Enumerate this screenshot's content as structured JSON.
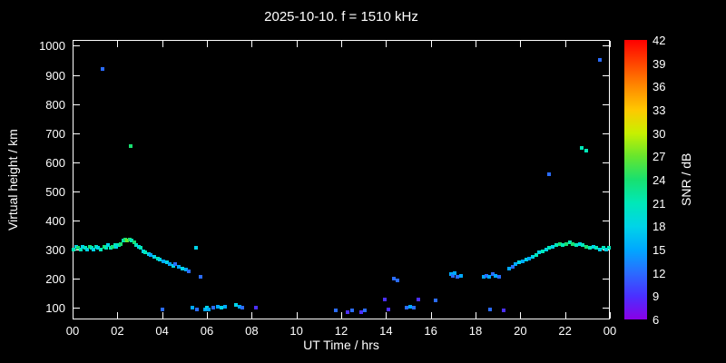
{
  "chart_data": {
    "type": "scatter",
    "title": "2025-10-10. f = 1510 kHz",
    "xlabel": "UT Time / hrs",
    "ylabel": "Virtual height / km",
    "colorbar_label": "SNR / dB",
    "background": "#000000",
    "axis_color": "#ffffff",
    "xlim": [
      0,
      24
    ],
    "ylim": [
      60,
      1020
    ],
    "x_ticks": [
      {
        "v": 0,
        "l": "00"
      },
      {
        "v": 2,
        "l": "02"
      },
      {
        "v": 4,
        "l": "04"
      },
      {
        "v": 6,
        "l": "06"
      },
      {
        "v": 8,
        "l": "08"
      },
      {
        "v": 10,
        "l": "10"
      },
      {
        "v": 12,
        "l": "12"
      },
      {
        "v": 14,
        "l": "14"
      },
      {
        "v": 16,
        "l": "16"
      },
      {
        "v": 18,
        "l": "18"
      },
      {
        "v": 20,
        "l": "20"
      },
      {
        "v": 22,
        "l": "22"
      },
      {
        "v": 24,
        "l": "00"
      }
    ],
    "y_ticks": [
      100,
      200,
      300,
      400,
      500,
      600,
      700,
      800,
      900,
      1000
    ],
    "colorbar_ticks": [
      6,
      9,
      12,
      15,
      18,
      21,
      24,
      27,
      30,
      33,
      36,
      39,
      42
    ],
    "colorbar_range": [
      6,
      42
    ],
    "palette": [
      {
        "v": 6,
        "c": "#8a00e6"
      },
      {
        "v": 9,
        "c": "#4b2fff"
      },
      {
        "v": 12,
        "c": "#2a6cff"
      },
      {
        "v": 15,
        "c": "#00a8ff"
      },
      {
        "v": 18,
        "c": "#00d4e8"
      },
      {
        "v": 21,
        "c": "#00e8b8"
      },
      {
        "v": 24,
        "c": "#18e070"
      },
      {
        "v": 27,
        "c": "#66e62e"
      },
      {
        "v": 30,
        "c": "#c8f000"
      },
      {
        "v": 33,
        "c": "#ffc800"
      },
      {
        "v": 36,
        "c": "#ff8a00"
      },
      {
        "v": 39,
        "c": "#ff4400"
      },
      {
        "v": 42,
        "c": "#ff0000"
      }
    ],
    "points_format": [
      "ut_hour",
      "virtual_height_km",
      "snr_db"
    ],
    "points": [
      [
        0.05,
        300,
        21
      ],
      [
        0.15,
        310,
        18
      ],
      [
        0.25,
        305,
        24
      ],
      [
        0.35,
        300,
        21
      ],
      [
        0.45,
        310,
        18
      ],
      [
        0.55,
        305,
        21
      ],
      [
        0.65,
        300,
        18
      ],
      [
        0.75,
        310,
        24
      ],
      [
        0.85,
        305,
        21
      ],
      [
        0.95,
        300,
        18
      ],
      [
        1.05,
        310,
        21
      ],
      [
        1.15,
        305,
        18
      ],
      [
        1.25,
        300,
        21
      ],
      [
        1.35,
        920,
        12
      ],
      [
        1.4,
        310,
        24
      ],
      [
        1.5,
        305,
        21
      ],
      [
        1.6,
        315,
        18
      ],
      [
        1.7,
        305,
        21
      ],
      [
        1.8,
        310,
        24
      ],
      [
        1.9,
        315,
        21
      ],
      [
        1.95,
        310,
        18
      ],
      [
        2.05,
        315,
        21
      ],
      [
        2.15,
        320,
        24
      ],
      [
        2.25,
        330,
        21
      ],
      [
        2.35,
        335,
        24
      ],
      [
        2.45,
        330,
        27
      ],
      [
        2.55,
        335,
        24
      ],
      [
        2.6,
        655,
        24
      ],
      [
        2.65,
        330,
        21
      ],
      [
        2.75,
        325,
        24
      ],
      [
        2.85,
        315,
        21
      ],
      [
        2.95,
        310,
        18
      ],
      [
        3.05,
        305,
        21
      ],
      [
        3.15,
        295,
        18
      ],
      [
        3.25,
        290,
        21
      ],
      [
        3.4,
        285,
        18
      ],
      [
        3.5,
        280,
        15
      ],
      [
        3.65,
        275,
        18
      ],
      [
        3.8,
        270,
        21
      ],
      [
        3.9,
        265,
        18
      ],
      [
        4.0,
        95,
        12
      ],
      [
        4.05,
        260,
        15
      ],
      [
        4.2,
        255,
        18
      ],
      [
        4.35,
        250,
        15
      ],
      [
        4.5,
        245,
        18
      ],
      [
        4.6,
        250,
        12
      ],
      [
        4.75,
        240,
        15
      ],
      [
        4.9,
        235,
        18
      ],
      [
        5.05,
        230,
        15
      ],
      [
        5.2,
        225,
        12
      ],
      [
        5.35,
        100,
        15
      ],
      [
        5.5,
        305,
        18
      ],
      [
        5.55,
        95,
        12
      ],
      [
        5.7,
        205,
        12
      ],
      [
        5.9,
        95,
        15
      ],
      [
        6.0,
        100,
        18
      ],
      [
        6.1,
        95,
        15
      ],
      [
        6.3,
        100,
        12
      ],
      [
        6.5,
        105,
        15
      ],
      [
        6.65,
        100,
        18
      ],
      [
        6.8,
        105,
        15
      ],
      [
        7.3,
        110,
        18
      ],
      [
        7.45,
        105,
        15
      ],
      [
        7.6,
        100,
        12
      ],
      [
        8.2,
        100,
        9
      ],
      [
        11.75,
        90,
        12
      ],
      [
        12.3,
        85,
        9
      ],
      [
        12.5,
        90,
        12
      ],
      [
        12.9,
        85,
        9
      ],
      [
        13.05,
        90,
        12
      ],
      [
        13.95,
        130,
        9
      ],
      [
        14.1,
        95,
        9
      ],
      [
        14.35,
        200,
        12
      ],
      [
        14.5,
        195,
        12
      ],
      [
        14.9,
        100,
        12
      ],
      [
        15.1,
        105,
        15
      ],
      [
        15.25,
        100,
        12
      ],
      [
        15.45,
        130,
        9
      ],
      [
        16.2,
        125,
        12
      ],
      [
        16.9,
        215,
        15
      ],
      [
        17.0,
        210,
        12
      ],
      [
        17.05,
        220,
        15
      ],
      [
        17.2,
        205,
        12
      ],
      [
        17.35,
        210,
        15
      ],
      [
        18.35,
        205,
        15
      ],
      [
        18.5,
        210,
        12
      ],
      [
        18.6,
        205,
        15
      ],
      [
        18.65,
        95,
        12
      ],
      [
        18.75,
        215,
        12
      ],
      [
        18.9,
        210,
        15
      ],
      [
        19.05,
        205,
        12
      ],
      [
        19.25,
        90,
        9
      ],
      [
        19.5,
        235,
        15
      ],
      [
        19.65,
        240,
        12
      ],
      [
        19.8,
        250,
        15
      ],
      [
        19.95,
        255,
        18
      ],
      [
        20.1,
        260,
        15
      ],
      [
        20.25,
        265,
        18
      ],
      [
        20.4,
        270,
        15
      ],
      [
        20.55,
        275,
        18
      ],
      [
        20.7,
        280,
        21
      ],
      [
        20.85,
        290,
        18
      ],
      [
        21.0,
        295,
        21
      ],
      [
        21.15,
        300,
        18
      ],
      [
        21.3,
        560,
        12
      ],
      [
        21.3,
        305,
        21
      ],
      [
        21.45,
        310,
        18
      ],
      [
        21.6,
        315,
        21
      ],
      [
        21.75,
        320,
        24
      ],
      [
        21.9,
        315,
        21
      ],
      [
        22.05,
        320,
        24
      ],
      [
        22.2,
        325,
        21
      ],
      [
        22.35,
        320,
        24
      ],
      [
        22.5,
        315,
        21
      ],
      [
        22.65,
        320,
        18
      ],
      [
        22.75,
        650,
        21
      ],
      [
        22.8,
        315,
        21
      ],
      [
        22.95,
        640,
        21
      ],
      [
        22.95,
        310,
        24
      ],
      [
        23.1,
        305,
        21
      ],
      [
        23.25,
        310,
        18
      ],
      [
        23.4,
        305,
        21
      ],
      [
        23.55,
        950,
        12
      ],
      [
        23.55,
        300,
        18
      ],
      [
        23.7,
        305,
        21
      ],
      [
        23.85,
        300,
        18
      ],
      [
        23.95,
        305,
        21
      ]
    ]
  }
}
